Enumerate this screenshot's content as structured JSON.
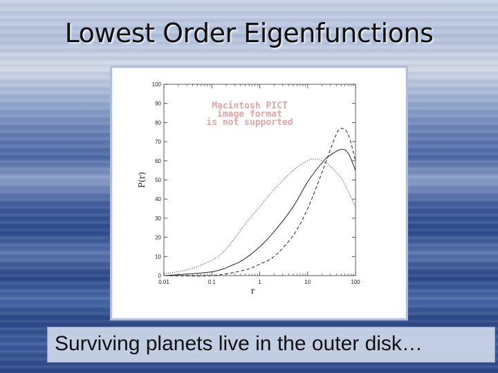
{
  "slide": {
    "title": "Lowest Order Eigenfunctions",
    "caption": "Surviving planets live in the outer disk…"
  },
  "placeholder": {
    "lines": [
      "Macintosh PICT",
      "image format",
      "is not supported"
    ],
    "color": "#e2a3a3"
  },
  "chart_data": {
    "type": "line",
    "title": "",
    "xlabel": "r",
    "ylabel": "P(r)",
    "xscale": "log",
    "xlim": [
      0.01,
      100
    ],
    "ylim": [
      0,
      100
    ],
    "xticks": [
      0.01,
      0.1,
      1,
      10,
      100
    ],
    "xtick_labels": [
      "0.01",
      "0.1",
      "1",
      "10",
      "100"
    ],
    "yticks": [
      0,
      10,
      20,
      30,
      40,
      50,
      60,
      70,
      80,
      90,
      100
    ],
    "ytick_labels": [
      "0",
      "10",
      "20",
      "30",
      "40",
      "50",
      "60",
      "70",
      "80",
      "90",
      "100"
    ],
    "grid": false,
    "series": [
      {
        "style": "dotted",
        "x": [
          0.01,
          0.03,
          0.1,
          0.2,
          0.5,
          1,
          2,
          5,
          10,
          15,
          20,
          30,
          50,
          70,
          100
        ],
        "y": [
          1,
          3,
          8,
          14,
          27,
          36,
          45,
          55,
          60,
          61,
          60,
          57,
          51,
          44,
          36
        ]
      },
      {
        "style": "solid",
        "x": [
          0.01,
          0.1,
          0.3,
          0.5,
          1,
          2,
          5,
          10,
          20,
          30,
          50,
          70,
          100
        ],
        "y": [
          0,
          2,
          6,
          9,
          15,
          23,
          36,
          49,
          59,
          63,
          66,
          64,
          55
        ]
      },
      {
        "style": "dashed",
        "x": [
          0.01,
          0.1,
          0.5,
          1,
          2,
          5,
          10,
          20,
          30,
          40,
          50,
          70,
          100
        ],
        "y": [
          0,
          0,
          3,
          6,
          10,
          21,
          35,
          54,
          66,
          74,
          77,
          74,
          60
        ]
      }
    ]
  }
}
